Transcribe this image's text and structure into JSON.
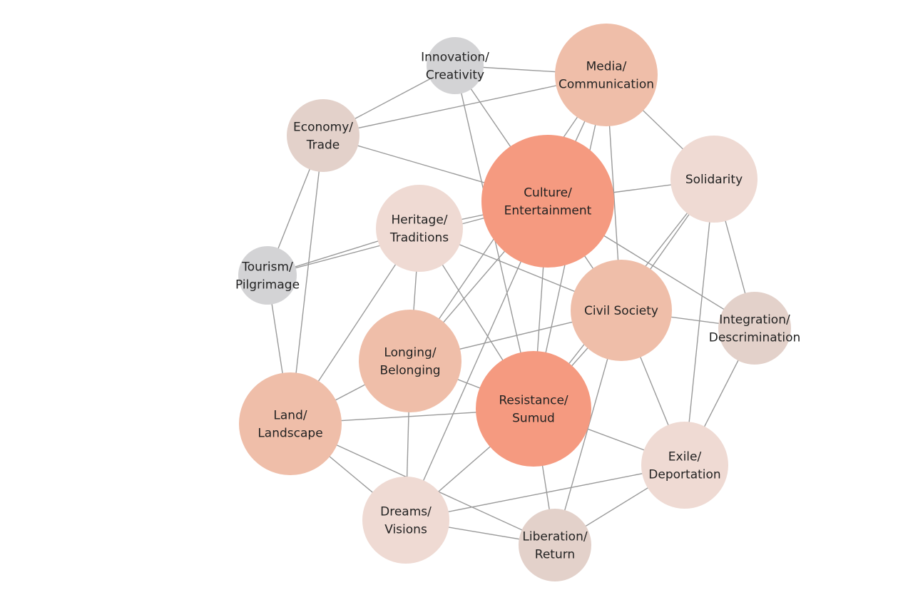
{
  "colors": {
    "edge": "#9a9a9a",
    "high": "#f59a80",
    "mid": "#efbea9",
    "low": "#efdad3",
    "muted": "#e3d1ca",
    "gray": "#d3d3d5"
  },
  "nodes": [
    {
      "id": "innovation",
      "lines": [
        "Innovation/",
        "Creativity"
      ],
      "level": "gray"
    },
    {
      "id": "media",
      "lines": [
        "Media/",
        "Communication"
      ],
      "level": "mid"
    },
    {
      "id": "economy",
      "lines": [
        "Economy/",
        "Trade"
      ],
      "level": "muted"
    },
    {
      "id": "solidarity",
      "lines": [
        "Solidarity"
      ],
      "level": "low"
    },
    {
      "id": "culture",
      "lines": [
        "Culture/",
        "Entertainment"
      ],
      "level": "high"
    },
    {
      "id": "heritage",
      "lines": [
        "Heritage/",
        "Traditions"
      ],
      "level": "low"
    },
    {
      "id": "tourism",
      "lines": [
        "Tourism/",
        "Pilgrimage"
      ],
      "level": "gray"
    },
    {
      "id": "civil",
      "lines": [
        "Civil Society"
      ],
      "level": "mid"
    },
    {
      "id": "integration",
      "lines": [
        "Integration/",
        "Descrimination"
      ],
      "level": "muted"
    },
    {
      "id": "longing",
      "lines": [
        "Longing/",
        "Belonging"
      ],
      "level": "mid"
    },
    {
      "id": "resistance",
      "lines": [
        "Resistance/",
        "Sumud"
      ],
      "level": "high"
    },
    {
      "id": "land",
      "lines": [
        "Land/",
        "Landscape"
      ],
      "level": "mid"
    },
    {
      "id": "exile",
      "lines": [
        "Exile/",
        "Deportation"
      ],
      "level": "low"
    },
    {
      "id": "dreams",
      "lines": [
        "Dreams/",
        "Visions"
      ],
      "level": "low"
    },
    {
      "id": "liberation",
      "lines": [
        "Liberation/",
        "Return"
      ],
      "level": "muted"
    }
  ],
  "edges": [
    [
      "innovation",
      "media"
    ],
    [
      "innovation",
      "economy"
    ],
    [
      "innovation",
      "culture"
    ],
    [
      "innovation",
      "resistance"
    ],
    [
      "media",
      "economy"
    ],
    [
      "media",
      "solidarity"
    ],
    [
      "media",
      "culture"
    ],
    [
      "media",
      "longing"
    ],
    [
      "media",
      "resistance"
    ],
    [
      "media",
      "civil"
    ],
    [
      "economy",
      "culture"
    ],
    [
      "economy",
      "tourism"
    ],
    [
      "economy",
      "land"
    ],
    [
      "solidarity",
      "culture"
    ],
    [
      "solidarity",
      "civil"
    ],
    [
      "solidarity",
      "resistance"
    ],
    [
      "solidarity",
      "integration"
    ],
    [
      "solidarity",
      "exile"
    ],
    [
      "heritage",
      "culture"
    ],
    [
      "heritage",
      "tourism"
    ],
    [
      "heritage",
      "civil"
    ],
    [
      "heritage",
      "land"
    ],
    [
      "heritage",
      "longing"
    ],
    [
      "heritage",
      "resistance"
    ],
    [
      "tourism",
      "culture"
    ],
    [
      "tourism",
      "land"
    ],
    [
      "culture",
      "longing"
    ],
    [
      "culture",
      "resistance"
    ],
    [
      "culture",
      "civil"
    ],
    [
      "culture",
      "dreams"
    ],
    [
      "culture",
      "integration"
    ],
    [
      "civil",
      "integration"
    ],
    [
      "civil",
      "longing"
    ],
    [
      "civil",
      "resistance"
    ],
    [
      "civil",
      "exile"
    ],
    [
      "civil",
      "liberation"
    ],
    [
      "longing",
      "land"
    ],
    [
      "longing",
      "resistance"
    ],
    [
      "longing",
      "dreams"
    ],
    [
      "resistance",
      "land"
    ],
    [
      "resistance",
      "dreams"
    ],
    [
      "resistance",
      "exile"
    ],
    [
      "resistance",
      "liberation"
    ],
    [
      "land",
      "dreams"
    ],
    [
      "land",
      "liberation"
    ],
    [
      "exile",
      "dreams"
    ],
    [
      "exile",
      "liberation"
    ],
    [
      "exile",
      "integration"
    ],
    [
      "dreams",
      "liberation"
    ]
  ]
}
